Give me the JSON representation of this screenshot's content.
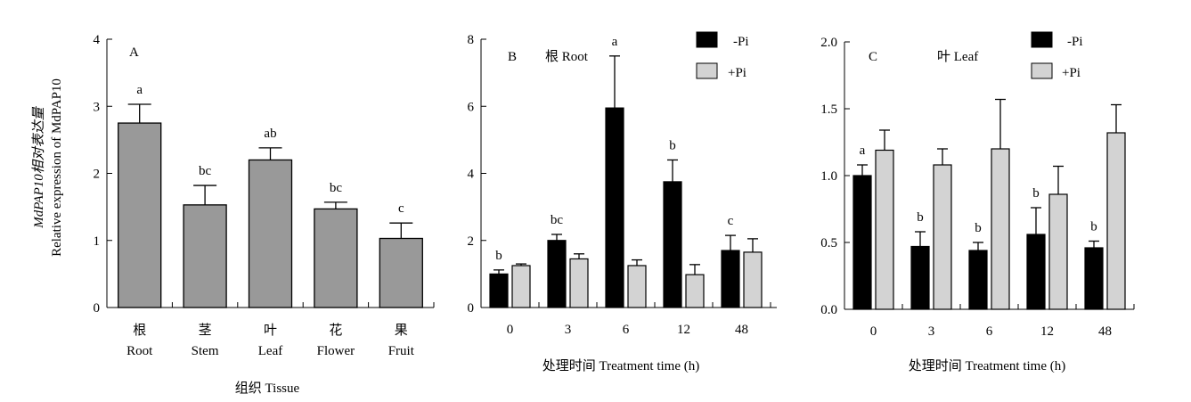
{
  "shared": {
    "y_label_line1": "MdPAP10相对表达量",
    "y_label_line2": "Relative expression of MdPAP10",
    "x_label_b_c": "处理时间 Treatment time (h)",
    "legend_minus": "-Pi",
    "legend_plus": "+Pi"
  },
  "colors": {
    "gray_bar": "#999999",
    "black_bar": "#000000",
    "light_bar": "#d3d3d3"
  },
  "chart_data": [
    {
      "panel": "A",
      "type": "bar",
      "xlabel": "组织 Tissue",
      "categories": [
        {
          "zh": "根",
          "en": "Root"
        },
        {
          "zh": "茎",
          "en": "Stem"
        },
        {
          "zh": "叶",
          "en": "Leaf"
        },
        {
          "zh": "花",
          "en": "Flower"
        },
        {
          "zh": "果",
          "en": "Fruit"
        }
      ],
      "values": [
        2.75,
        1.53,
        2.2,
        1.47,
        1.03
      ],
      "errors": [
        0.28,
        0.29,
        0.18,
        0.1,
        0.23
      ],
      "letters": [
        "a",
        "bc",
        "ab",
        "bc",
        "c"
      ],
      "ylim": [
        0,
        4
      ],
      "yticks": [
        0,
        1,
        2,
        3,
        4
      ]
    },
    {
      "panel": "B",
      "type": "bar",
      "subtitle": "根 Root",
      "categories": [
        "0",
        "3",
        "6",
        "12",
        "48"
      ],
      "series": [
        {
          "name": "-Pi",
          "values": [
            1.0,
            2.0,
            5.95,
            3.75,
            1.7
          ],
          "errors": [
            0.12,
            0.18,
            1.55,
            0.65,
            0.45
          ]
        },
        {
          "name": "+Pi",
          "values": [
            1.25,
            1.45,
            1.25,
            0.98,
            1.65
          ],
          "errors": [
            0.05,
            0.15,
            0.17,
            0.3,
            0.4
          ]
        }
      ],
      "letters": [
        "b",
        "bc",
        "a",
        "b",
        "c"
      ],
      "ylim": [
        0,
        8
      ],
      "yticks": [
        0,
        2,
        4,
        6,
        8
      ]
    },
    {
      "panel": "C",
      "type": "bar",
      "subtitle": "叶 Leaf",
      "categories": [
        "0",
        "3",
        "6",
        "12",
        "48"
      ],
      "series": [
        {
          "name": "-Pi",
          "values": [
            1.0,
            0.47,
            0.44,
            0.56,
            0.46
          ],
          "errors": [
            0.08,
            0.11,
            0.06,
            0.2,
            0.05
          ]
        },
        {
          "name": "+Pi",
          "values": [
            1.19,
            1.08,
            1.2,
            0.86,
            1.32
          ],
          "errors": [
            0.15,
            0.12,
            0.37,
            0.21,
            0.21
          ]
        }
      ],
      "letters": [
        "a",
        "b",
        "b",
        "b",
        "b"
      ],
      "ylim": [
        0,
        2.0
      ],
      "yticks": [
        "0.0",
        "0.5",
        "1.0",
        "1.5",
        "2.0"
      ]
    }
  ]
}
